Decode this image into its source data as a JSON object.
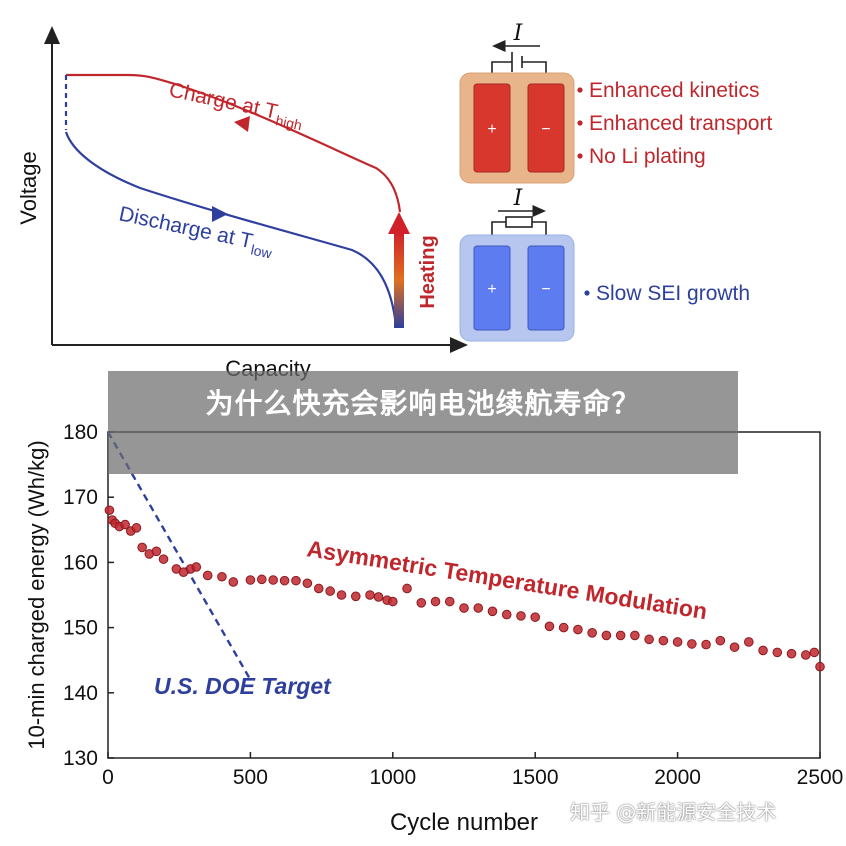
{
  "chart_data": [
    {
      "type": "line",
      "xlabel": "Capacity",
      "ylabel": "Voltage",
      "series": [
        {
          "name": "Charge at T",
          "subscript": "high",
          "color": "#c0272d"
        },
        {
          "name": "Discharge at T",
          "subscript": "low",
          "color": "#2e3f9e"
        }
      ],
      "heating_label": "Heating",
      "panels": [
        {
          "current_label": "I",
          "plus": "+",
          "minus": "−",
          "bullets": [
            "Enhanced kinetics",
            "Enhanced transport",
            "No Li plating"
          ],
          "bullet_color": "#c0272d",
          "fill": "#e8b48a",
          "cell_color": "#d8372e"
        },
        {
          "current_label": "I",
          "plus": "+",
          "minus": "−",
          "bullets": [
            "Slow SEI growth"
          ],
          "bullet_color": "#2e3f9e",
          "fill": "#b6c6ee",
          "cell_color": "#5c7cf0"
        }
      ]
    },
    {
      "type": "scatter",
      "xlabel": "Cycle number",
      "ylabel": "10-min charged energy (Wh/kg)",
      "xlim": [
        0,
        2500
      ],
      "ylim": [
        130,
        180
      ],
      "xticks": [
        0,
        500,
        1000,
        1500,
        2000,
        2500
      ],
      "yticks": [
        130,
        140,
        150,
        160,
        170,
        180
      ],
      "series": [
        {
          "name": "Asymmetric Temperature Modulation",
          "color": "#c0272d",
          "points": [
            [
              5,
              168
            ],
            [
              15,
              166.5
            ],
            [
              25,
              166
            ],
            [
              40,
              165.5
            ],
            [
              60,
              165.8
            ],
            [
              80,
              164.8
            ],
            [
              100,
              165.3
            ],
            [
              120,
              162.3
            ],
            [
              145,
              161.3
            ],
            [
              170,
              161.7
            ],
            [
              195,
              160.5
            ],
            [
              240,
              159
            ],
            [
              265,
              158.5
            ],
            [
              290,
              159
            ],
            [
              310,
              159.3
            ],
            [
              350,
              158
            ],
            [
              400,
              157.8
            ],
            [
              440,
              157
            ],
            [
              500,
              157.3
            ],
            [
              540,
              157.4
            ],
            [
              580,
              157.3
            ],
            [
              620,
              157.2
            ],
            [
              660,
              157.2
            ],
            [
              700,
              156.8
            ],
            [
              740,
              156
            ],
            [
              780,
              155.6
            ],
            [
              820,
              155
            ],
            [
              870,
              154.8
            ],
            [
              920,
              155
            ],
            [
              950,
              154.7
            ],
            [
              980,
              154.2
            ],
            [
              1000,
              154
            ],
            [
              1050,
              156
            ],
            [
              1100,
              153.8
            ],
            [
              1150,
              154
            ],
            [
              1200,
              154
            ],
            [
              1250,
              153
            ],
            [
              1300,
              153
            ],
            [
              1350,
              152.5
            ],
            [
              1400,
              152
            ],
            [
              1450,
              151.8
            ],
            [
              1500,
              151.6
            ],
            [
              1550,
              150.2
            ],
            [
              1600,
              150
            ],
            [
              1650,
              149.7
            ],
            [
              1700,
              149.2
            ],
            [
              1750,
              148.8
            ],
            [
              1800,
              148.8
            ],
            [
              1850,
              148.8
            ],
            [
              1900,
              148.2
            ],
            [
              1950,
              148
            ],
            [
              2000,
              147.8
            ],
            [
              2050,
              147.5
            ],
            [
              2100,
              147.4
            ],
            [
              2150,
              148
            ],
            [
              2200,
              147
            ],
            [
              2250,
              147.8
            ],
            [
              2300,
              146.5
            ],
            [
              2350,
              146.2
            ],
            [
              2400,
              146
            ],
            [
              2450,
              145.8
            ],
            [
              2480,
              146.2
            ],
            [
              2500,
              144
            ]
          ]
        },
        {
          "name": "U.S. DOE Target",
          "color": "#2e3f9e",
          "points": [
            [
              0,
              180
            ],
            [
              500,
              142
            ]
          ]
        }
      ]
    }
  ],
  "overlay": {
    "title": "为什么快充会影响电池续航寿命？"
  },
  "watermark": "知乎 @新能源安全技术"
}
